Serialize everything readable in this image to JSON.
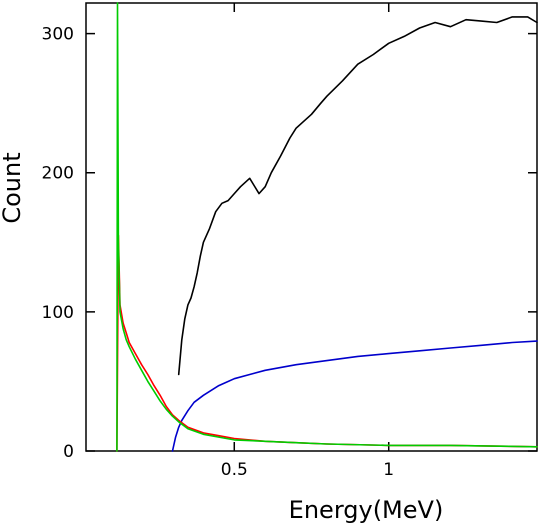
{
  "chart_data": {
    "type": "line",
    "title": "",
    "xlabel": "Energy(MeV)",
    "ylabel": "Count",
    "xlim": [
      0.02,
      1.48
    ],
    "ylim": [
      0,
      322
    ],
    "xticks": [
      0.5,
      1
    ],
    "xtick_labels": [
      "0.5",
      "1"
    ],
    "yticks": [
      0,
      100,
      200,
      300
    ],
    "ytick_labels": [
      "0",
      "100",
      "200",
      "300"
    ],
    "grid": false,
    "series": [
      {
        "color": "#000000",
        "x": [
          0.32,
          0.33,
          0.34,
          0.35,
          0.36,
          0.37,
          0.38,
          0.39,
          0.4,
          0.42,
          0.44,
          0.46,
          0.48,
          0.5,
          0.52,
          0.55,
          0.58,
          0.6,
          0.62,
          0.65,
          0.68,
          0.7,
          0.72,
          0.75,
          0.78,
          0.8,
          0.85,
          0.9,
          0.95,
          1.0,
          1.05,
          1.1,
          1.15,
          1.2,
          1.25,
          1.3,
          1.35,
          1.4,
          1.45,
          1.48
        ],
        "values": [
          55,
          80,
          95,
          105,
          110,
          118,
          128,
          140,
          150,
          160,
          172,
          178,
          180,
          185,
          190,
          196,
          185,
          190,
          200,
          212,
          225,
          232,
          236,
          242,
          250,
          255,
          266,
          278,
          285,
          293,
          298,
          304,
          308,
          305,
          310,
          309,
          308,
          312,
          312,
          308
        ]
      },
      {
        "color": "#0000cc",
        "x": [
          0.3,
          0.31,
          0.32,
          0.33,
          0.35,
          0.37,
          0.4,
          0.45,
          0.5,
          0.55,
          0.6,
          0.7,
          0.8,
          0.9,
          1.0,
          1.1,
          1.2,
          1.3,
          1.4,
          1.48
        ],
        "values": [
          0,
          10,
          17,
          22,
          29,
          35,
          40,
          47,
          52,
          55,
          58,
          62,
          65,
          68,
          70,
          72,
          74,
          76,
          78,
          79
        ]
      },
      {
        "color": "#ff0000",
        "x": [
          0.12,
          0.125,
          0.13,
          0.14,
          0.15,
          0.16,
          0.18,
          0.2,
          0.22,
          0.24,
          0.26,
          0.28,
          0.3,
          0.32,
          0.35,
          0.4,
          0.45,
          0.5,
          0.6,
          0.7,
          0.8,
          1.0,
          1.2,
          1.48
        ],
        "values": [
          0,
          155,
          105,
          92,
          85,
          78,
          70,
          62,
          55,
          47,
          40,
          32,
          26,
          22,
          17,
          13,
          11,
          9,
          7,
          6,
          5,
          4,
          4,
          3
        ]
      },
      {
        "color": "#00cc00",
        "x": [
          0.12,
          0.122,
          0.125,
          0.13,
          0.14,
          0.15,
          0.16,
          0.18,
          0.2,
          0.22,
          0.24,
          0.26,
          0.28,
          0.3,
          0.32,
          0.35,
          0.4,
          0.45,
          0.5,
          0.6,
          0.7,
          0.8,
          1.0,
          1.2,
          1.48
        ],
        "values": [
          0,
          322,
          150,
          100,
          88,
          80,
          75,
          66,
          58,
          50,
          43,
          36,
          30,
          25,
          21,
          16,
          12,
          10,
          8,
          7,
          6,
          5,
          4,
          4,
          3
        ]
      }
    ]
  }
}
